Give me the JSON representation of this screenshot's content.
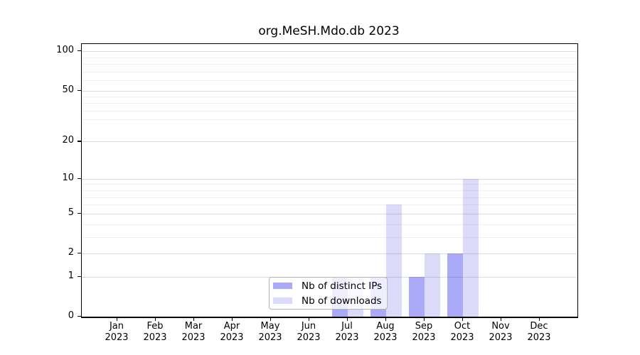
{
  "figure": {
    "title": "org.MeSH.Mdo.db 2023"
  },
  "chart_data": {
    "type": "bar",
    "title": "org.MeSH.Mdo.db 2023",
    "xlabel": "",
    "ylabel": "",
    "categories": [
      "Jan",
      "Feb",
      "Mar",
      "Apr",
      "May",
      "Jun",
      "Jul",
      "Aug",
      "Sep",
      "Oct",
      "Nov",
      "Dec"
    ],
    "year_label": "2023",
    "series": [
      {
        "name": "Nb of distinct IPs",
        "color": "#aaaaf9",
        "values": [
          0,
          0,
          0,
          0,
          0,
          0,
          1,
          1,
          1,
          2,
          0,
          0
        ]
      },
      {
        "name": "Nb of downloads",
        "color": "#dbdbf9",
        "values": [
          0,
          0,
          0,
          0,
          0,
          0,
          1,
          6,
          2,
          10,
          0,
          0
        ]
      }
    ],
    "y_scale": "log1p",
    "y_major_ticks": [
      0,
      1,
      2,
      5,
      10,
      20,
      50,
      100
    ],
    "y_minor_gridlines": [
      3,
      4,
      6,
      7,
      8,
      9,
      30,
      35,
      40,
      45,
      60,
      70,
      80,
      90
    ],
    "ylim": [
      0,
      114
    ],
    "grid": true,
    "legend_position": "bottom-center-inside"
  },
  "colors": {
    "distinct_ips_bar": "#aaaaf9",
    "downloads_bar": "#dbdbf9",
    "major_gridline": "#dcdcdc",
    "minor_gridline": "#ececec",
    "axis": "#000000"
  }
}
